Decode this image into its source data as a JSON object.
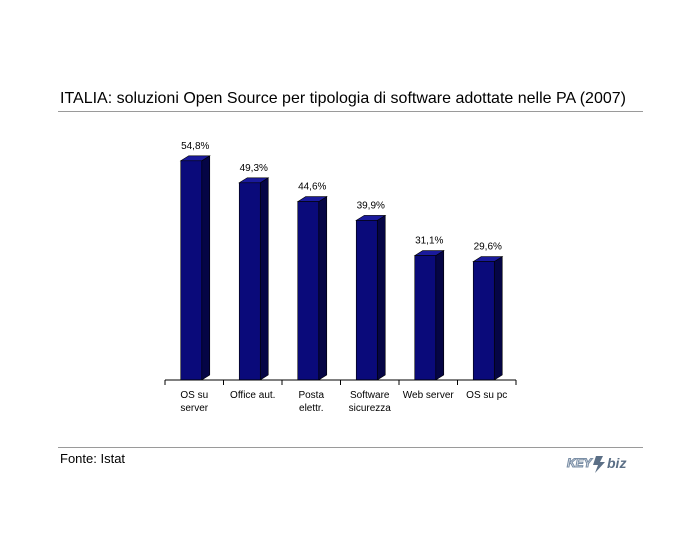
{
  "title": "ITALIA: soluzioni Open Source per tipologia di software adottate nelle PA (2007)",
  "source": "Fonte: Istat",
  "logo_text": "KEY4biz",
  "colors": {
    "bar_front": "#0a0a7a",
    "bar_side": "#050545",
    "bar_top": "#1a1a9c",
    "rule": "#9a9a9a"
  },
  "chart_data": {
    "type": "bar",
    "title": "",
    "xlabel": "",
    "ylabel": "",
    "categories": [
      [
        "OS su",
        "server"
      ],
      [
        "Office aut."
      ],
      [
        "Posta",
        "elettr."
      ],
      [
        "Software",
        "sicurezza"
      ],
      [
        "Web server"
      ],
      [
        "OS su pc"
      ]
    ],
    "values": [
      54.8,
      49.3,
      44.6,
      39.9,
      31.1,
      29.6
    ],
    "value_labels": [
      "54,8%",
      "49,3%",
      "44,6%",
      "39,9%",
      "31,1%",
      "29,6%"
    ],
    "ylim": [
      0,
      60
    ],
    "grid": false,
    "legend": "none"
  }
}
